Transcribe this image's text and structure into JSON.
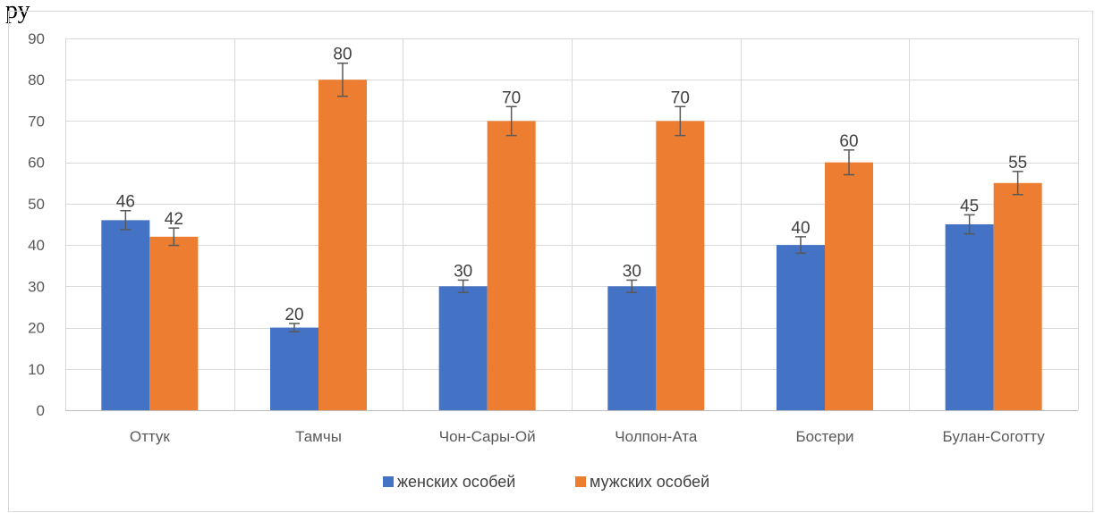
{
  "top_fragment": "ру",
  "chart_data": {
    "type": "bar",
    "categories": [
      "Оттук",
      "Тамчы",
      "Чон-Сары-Ой",
      "Чолпон-Ата",
      "Бостери",
      "Булан-Соготту"
    ],
    "series": [
      {
        "name": "женских особей",
        "color": "#4472c4",
        "values": [
          46,
          20,
          30,
          30,
          40,
          45
        ],
        "errors": [
          2.3,
          1.0,
          1.5,
          1.5,
          2.0,
          2.3
        ]
      },
      {
        "name": "мужских особей",
        "color": "#ed7d31",
        "values": [
          42,
          80,
          70,
          70,
          60,
          55
        ],
        "errors": [
          2.1,
          4.0,
          3.5,
          3.5,
          3.0,
          2.8
        ]
      }
    ],
    "ylim": [
      0,
      90
    ],
    "yticks": [
      0,
      10,
      20,
      30,
      40,
      50,
      60,
      70,
      80,
      90
    ],
    "grid": true,
    "legend": "bottom",
    "title": "",
    "xlabel": "",
    "ylabel": ""
  }
}
